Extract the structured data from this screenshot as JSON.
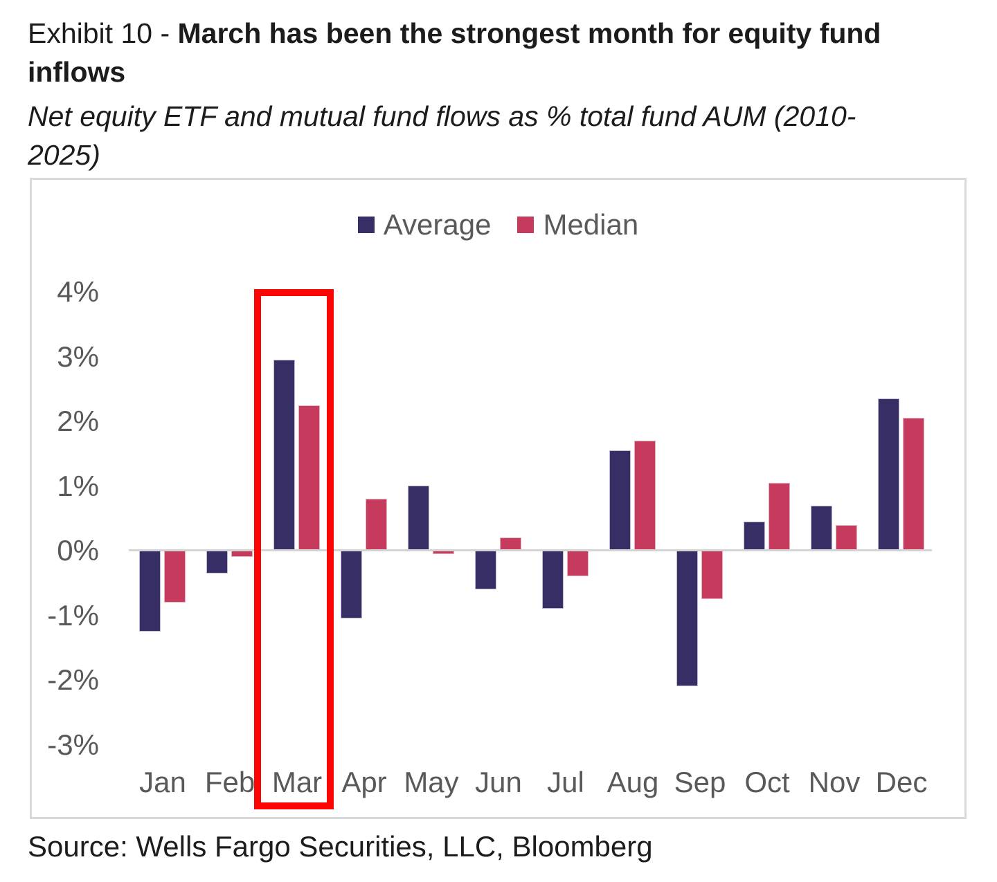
{
  "header": {
    "title_prefix": "Exhibit 10 - ",
    "title_bold": "March has been the strongest month for equity fund inflows",
    "subtitle": "Net equity ETF and mutual fund flows as % total fund AUM (2010-2025)"
  },
  "legend": [
    {
      "label": "Average",
      "color": "#372e66"
    },
    {
      "label": "Median",
      "color": "#c63a5e"
    }
  ],
  "chart_data": {
    "type": "bar",
    "title": "Net equity ETF and mutual fund flows as % total fund AUM (2010-2025)",
    "categories": [
      "Jan",
      "Feb",
      "Mar",
      "Apr",
      "May",
      "Jun",
      "Jul",
      "Aug",
      "Sep",
      "Oct",
      "Nov",
      "Dec"
    ],
    "series": [
      {
        "name": "Average",
        "color": "#372e66",
        "values": [
          -1.25,
          -0.35,
          2.95,
          -1.05,
          1.0,
          -0.6,
          -0.9,
          1.55,
          -2.1,
          0.45,
          0.7,
          2.35
        ]
      },
      {
        "name": "Median",
        "color": "#c63a5e",
        "values": [
          -0.8,
          -0.1,
          2.25,
          0.8,
          -0.05,
          0.2,
          -0.4,
          1.7,
          -0.75,
          1.05,
          0.4,
          2.05
        ]
      }
    ],
    "xlabel": "",
    "ylabel": "",
    "ylim": [
      -3,
      4
    ],
    "yticks": [
      {
        "value": 4,
        "label": "4%"
      },
      {
        "value": 3,
        "label": "3%"
      },
      {
        "value": 2,
        "label": "2%"
      },
      {
        "value": 1,
        "label": "1%"
      },
      {
        "value": 0,
        "label": "0%"
      },
      {
        "value": -1,
        "label": "-1%"
      },
      {
        "value": -2,
        "label": "-2%"
      },
      {
        "value": -3,
        "label": "-3%"
      }
    ],
    "grid": false,
    "legend_position": "top-center",
    "highlight": {
      "month": "Mar",
      "box_color": "#fb0505"
    }
  },
  "footer": {
    "source": "Source: Wells Fargo Securities, LLC, Bloomberg"
  }
}
